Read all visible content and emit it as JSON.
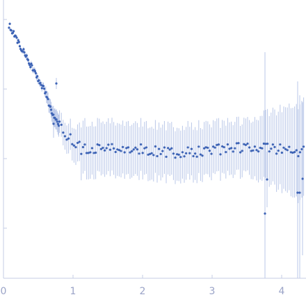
{
  "chart_data": {
    "type": "scatter",
    "title": "",
    "xlabel": "",
    "ylabel": "",
    "xlim": [
      0,
      4.35
    ],
    "x_ticks": [
      0,
      1,
      2,
      3,
      4
    ],
    "x_tick_labels": [
      "0",
      "1",
      "2",
      "3",
      "4"
    ],
    "y_scale": "log",
    "y_tick_labels": [],
    "grid": false,
    "error_bars": true,
    "colors": {
      "point": "#3d63b5",
      "error_bar": "#b9c7e8",
      "axis": "#c5cde6",
      "tick_label": "#9aa3c7"
    }
  }
}
